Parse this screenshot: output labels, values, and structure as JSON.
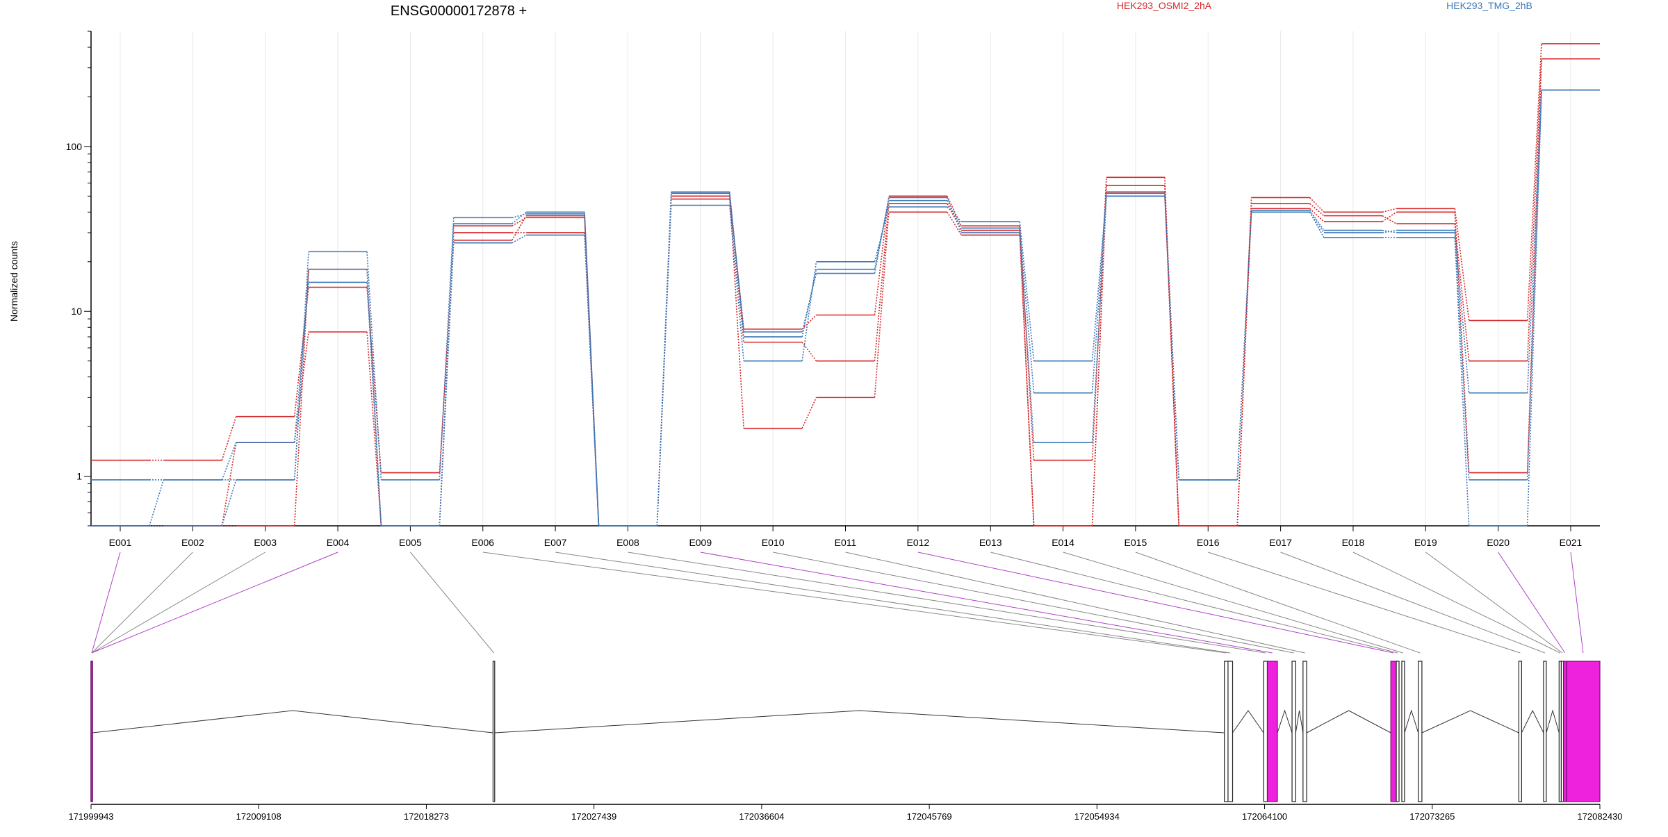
{
  "chart_data": [
    {
      "type": "line",
      "title": "ENSG00000172878 +",
      "ylabel": "Normalized counts",
      "yscale": "log",
      "ylim": [
        0.5,
        500
      ],
      "yticks": [
        1,
        10,
        100
      ],
      "ytick_labels": [
        "1",
        "10",
        "100"
      ],
      "categories": [
        "E001",
        "E002",
        "E003",
        "E004",
        "E005",
        "E006",
        "E007",
        "E008",
        "E009",
        "E010",
        "E011",
        "E012",
        "E013",
        "E014",
        "E015",
        "E016",
        "E017",
        "E018",
        "E019",
        "E020",
        "E021"
      ],
      "legend": [
        {
          "name": "HEK293_OSMI2_2hA",
          "color": "#d62728"
        },
        {
          "name": "HEK293_TMG_2hB",
          "color": "#3b78b6"
        }
      ],
      "series": [
        {
          "group": "HEK293_OSMI2_2hA",
          "color": "#d62728",
          "values": [
            1.25,
            1.25,
            2.3,
            14,
            1.05,
            27,
            38,
            0.5,
            50,
            7.8,
            9.5,
            50,
            33,
            1.25,
            65,
            0.5,
            49,
            40,
            42,
            8.8,
            420
          ]
        },
        {
          "group": "HEK293_OSMI2_2hA",
          "color": "#d62728",
          "values": [
            0.5,
            0.5,
            1.6,
            7.5,
            0.5,
            30,
            30,
            0.5,
            48,
            6.5,
            5,
            45,
            31,
            0.5,
            58,
            0.5,
            45,
            38,
            34,
            5,
            340
          ]
        },
        {
          "group": "HEK293_OSMI2_2hA",
          "color": "#d62728",
          "values": [
            0.5,
            0.5,
            0.5,
            18,
            0.5,
            33,
            37,
            0.5,
            53,
            1.95,
            3,
            40,
            29,
            0.5,
            53,
            0.5,
            42,
            35,
            40,
            1.05,
            340
          ]
        },
        {
          "group": "HEK293_TMG_2hB",
          "color": "#3b78b6",
          "values": [
            0.95,
            0.95,
            0.95,
            23,
            0.95,
            37,
            39,
            0.5,
            44,
            5,
            20,
            43,
            35,
            5,
            50,
            0.95,
            40,
            30,
            31,
            3.2,
            220
          ]
        },
        {
          "group": "HEK293_TMG_2hB",
          "color": "#3b78b6",
          "values": [
            0.5,
            0.95,
            1.6,
            15,
            0.5,
            34,
            40,
            0.5,
            52,
            7,
            18,
            47,
            32,
            3.2,
            52,
            0.95,
            41,
            31,
            30,
            0.95,
            220
          ]
        },
        {
          "group": "HEK293_TMG_2hB",
          "color": "#3b78b6",
          "values": [
            0.5,
            0.5,
            0.95,
            18,
            0.5,
            26,
            29,
            0.5,
            53,
            7.5,
            17,
            49,
            30,
            1.6,
            50,
            0.95,
            40,
            28,
            28,
            0.5,
            220
          ]
        }
      ]
    },
    {
      "type": "diagram",
      "xlim": [
        171999943,
        172082430
      ],
      "xticks": [
        171999943,
        172009108,
        172018273,
        172027439,
        172036604,
        172045769,
        172054934,
        172064100,
        172073265,
        172082430
      ],
      "xtick_labels": [
        "171999943",
        "172009108",
        "172018273",
        "172027439",
        "172036604",
        "172045769",
        "172054934",
        "172064100",
        "172073265",
        "172082430"
      ],
      "exon_color": "#ee22dd",
      "exons": [
        {
          "id": "E001",
          "start": 171999943,
          "end": 171999980,
          "highlight": true
        },
        {
          "id": "E002",
          "start": 171999943,
          "end": 171999960,
          "highlight": false
        },
        {
          "id": "E003",
          "start": 171999943,
          "end": 171999965,
          "highlight": false
        },
        {
          "id": "E004",
          "start": 171999943,
          "end": 171999970,
          "highlight": true
        },
        {
          "id": "E005",
          "start": 172021920,
          "end": 172022010,
          "highlight": false
        },
        {
          "id": "E006",
          "start": 172061900,
          "end": 172062110,
          "highlight": false
        },
        {
          "id": "E007",
          "start": 172062100,
          "end": 172062350,
          "highlight": false
        },
        {
          "id": "E008",
          "start": 172064050,
          "end": 172064250,
          "highlight": false
        },
        {
          "id": "E009",
          "start": 172064250,
          "end": 172064800,
          "highlight": true
        },
        {
          "id": "E010",
          "start": 172065600,
          "end": 172065800,
          "highlight": false
        },
        {
          "id": "E011",
          "start": 172066200,
          "end": 172066400,
          "highlight": false
        },
        {
          "id": "E012",
          "start": 172071000,
          "end": 172071300,
          "highlight": true
        },
        {
          "id": "E013",
          "start": 172071300,
          "end": 172071450,
          "highlight": false
        },
        {
          "id": "E014",
          "start": 172071600,
          "end": 172071750,
          "highlight": false
        },
        {
          "id": "E015",
          "start": 172072500,
          "end": 172072700,
          "highlight": false
        },
        {
          "id": "E016",
          "start": 172078000,
          "end": 172078150,
          "highlight": false
        },
        {
          "id": "E017",
          "start": 172079350,
          "end": 172079500,
          "highlight": false
        },
        {
          "id": "E018",
          "start": 172080200,
          "end": 172080320,
          "highlight": false
        },
        {
          "id": "E019",
          "start": 172080320,
          "end": 172080440,
          "highlight": false
        },
        {
          "id": "E020",
          "start": 172080440,
          "end": 172080600,
          "highlight": true
        },
        {
          "id": "E021",
          "start": 172080600,
          "end": 172082430,
          "highlight": true
        }
      ]
    }
  ]
}
